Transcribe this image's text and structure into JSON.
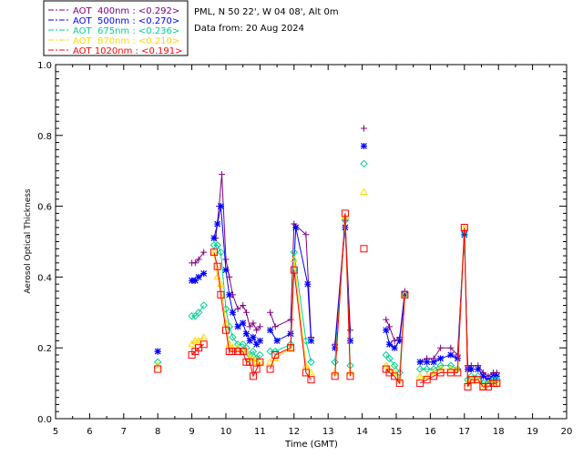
{
  "chart_data": {
    "type": "line",
    "info": {
      "location": "PML, N 50 22', W 04 08', Alt 0m",
      "date": "Data from: 20 Aug 2024"
    },
    "xlabel": "Time (GMT)",
    "ylabel": "Aerosol Optical Thickness",
    "xlim": [
      5,
      20
    ],
    "ylim": [
      0,
      1.0
    ],
    "x_ticks": [
      5,
      6,
      7,
      8,
      9,
      10,
      11,
      12,
      13,
      14,
      15,
      16,
      17,
      18,
      19,
      20
    ],
    "y_ticks": [
      "0.0",
      "0.2",
      "0.4",
      "0.6",
      "0.8",
      "1.0"
    ],
    "legend_position": "top-left",
    "grid": false,
    "series": [
      {
        "name": "AOT  400nm : <0.292>",
        "color": "#800080",
        "marker": "plus",
        "segments": [
          [
            [
              8.0,
              0.19
            ]
          ],
          [
            [
              9.0,
              0.44
            ],
            [
              9.1,
              0.44
            ],
            [
              9.2,
              0.45
            ],
            [
              9.35,
              0.47
            ]
          ],
          [
            [
              9.7,
              0.51
            ],
            [
              9.8,
              0.6
            ],
            [
              9.88,
              0.69
            ],
            [
              10.0,
              0.45
            ],
            [
              10.1,
              0.4
            ],
            [
              10.2,
              0.35
            ],
            [
              10.35,
              0.31
            ],
            [
              10.5,
              0.32
            ],
            [
              10.6,
              0.3
            ],
            [
              10.7,
              0.26
            ],
            [
              10.8,
              0.27
            ],
            [
              10.9,
              0.25
            ],
            [
              11.0,
              0.26
            ]
          ],
          [
            [
              11.3,
              0.3
            ],
            [
              11.45,
              0.26
            ],
            [
              11.9,
              0.28
            ],
            [
              12.0,
              0.55
            ],
            [
              12.35,
              0.52
            ],
            [
              12.5,
              0.23
            ]
          ],
          [
            [
              13.2,
              0.21
            ],
            [
              13.5,
              0.56
            ],
            [
              13.65,
              0.25
            ]
          ],
          [
            [
              14.05,
              0.82
            ]
          ],
          [
            [
              14.7,
              0.28
            ],
            [
              14.8,
              0.26
            ],
            [
              14.95,
              0.22
            ],
            [
              15.1,
              0.23
            ],
            [
              15.25,
              0.36
            ]
          ],
          [
            [
              15.7,
              0.16
            ],
            [
              15.9,
              0.17
            ],
            [
              16.1,
              0.17
            ],
            [
              16.3,
              0.2
            ],
            [
              16.6,
              0.2
            ],
            [
              16.8,
              0.18
            ],
            [
              17.0,
              0.53
            ],
            [
              17.1,
              0.15
            ],
            [
              17.2,
              0.15
            ],
            [
              17.4,
              0.15
            ],
            [
              17.55,
              0.13
            ],
            [
              17.7,
              0.12
            ],
            [
              17.85,
              0.13
            ],
            [
              17.95,
              0.13
            ]
          ]
        ]
      },
      {
        "name": "AOT  500nm : <0.270>",
        "color": "#0000ff",
        "marker": "asterisk",
        "segments": [
          [
            [
              8.0,
              0.19
            ]
          ],
          [
            [
              9.0,
              0.39
            ],
            [
              9.1,
              0.39
            ],
            [
              9.2,
              0.4
            ],
            [
              9.35,
              0.41
            ]
          ],
          [
            [
              9.65,
              0.51
            ],
            [
              9.75,
              0.55
            ],
            [
              9.85,
              0.6
            ],
            [
              10.0,
              0.42
            ],
            [
              10.1,
              0.35
            ],
            [
              10.2,
              0.3
            ],
            [
              10.35,
              0.26
            ],
            [
              10.5,
              0.27
            ],
            [
              10.6,
              0.24
            ],
            [
              10.7,
              0.22
            ],
            [
              10.8,
              0.23
            ],
            [
              10.9,
              0.21
            ],
            [
              11.0,
              0.22
            ]
          ],
          [
            [
              11.3,
              0.25
            ],
            [
              11.5,
              0.22
            ],
            [
              11.9,
              0.24
            ],
            [
              12.05,
              0.54
            ],
            [
              12.4,
              0.38
            ],
            [
              12.5,
              0.22
            ]
          ],
          [
            [
              13.2,
              0.2
            ],
            [
              13.5,
              0.54
            ],
            [
              13.65,
              0.22
            ]
          ],
          [
            [
              14.05,
              0.77
            ]
          ],
          [
            [
              14.7,
              0.25
            ],
            [
              14.8,
              0.21
            ],
            [
              14.95,
              0.2
            ],
            [
              15.1,
              0.22
            ],
            [
              15.25,
              0.35
            ]
          ],
          [
            [
              15.7,
              0.16
            ],
            [
              15.9,
              0.16
            ],
            [
              16.1,
              0.16
            ],
            [
              16.3,
              0.17
            ],
            [
              16.6,
              0.18
            ],
            [
              16.8,
              0.17
            ],
            [
              17.0,
              0.52
            ],
            [
              17.1,
              0.14
            ],
            [
              17.2,
              0.14
            ],
            [
              17.4,
              0.14
            ],
            [
              17.55,
              0.12
            ],
            [
              17.7,
              0.11
            ],
            [
              17.85,
              0.12
            ],
            [
              17.95,
              0.12
            ]
          ]
        ]
      },
      {
        "name": "AOT  675nm : <0.236>",
        "color": "#00d090",
        "marker": "diamond",
        "segments": [
          [
            [
              8.0,
              0.16
            ]
          ],
          [
            [
              9.0,
              0.29
            ],
            [
              9.1,
              0.29
            ],
            [
              9.2,
              0.3
            ],
            [
              9.35,
              0.32
            ]
          ],
          [
            [
              9.65,
              0.49
            ],
            [
              9.75,
              0.49
            ],
            [
              9.85,
              0.47
            ],
            [
              10.0,
              0.31
            ],
            [
              10.1,
              0.26
            ],
            [
              10.2,
              0.23
            ],
            [
              10.35,
              0.21
            ],
            [
              10.5,
              0.21
            ],
            [
              10.6,
              0.2
            ],
            [
              10.7,
              0.18
            ],
            [
              10.8,
              0.19
            ],
            [
              10.9,
              0.17
            ],
            [
              11.0,
              0.18
            ]
          ],
          [
            [
              11.3,
              0.19
            ],
            [
              11.45,
              0.19
            ],
            [
              11.9,
              0.21
            ],
            [
              12.0,
              0.47
            ],
            [
              12.35,
              0.22
            ],
            [
              12.5,
              0.16
            ]
          ],
          [
            [
              13.2,
              0.16
            ],
            [
              13.5,
              0.56
            ],
            [
              13.65,
              0.15
            ]
          ],
          [
            [
              14.05,
              0.72
            ]
          ],
          [
            [
              14.7,
              0.18
            ],
            [
              14.8,
              0.17
            ],
            [
              14.95,
              0.15
            ],
            [
              15.1,
              0.13
            ],
            [
              15.25,
              0.35
            ]
          ],
          [
            [
              15.7,
              0.14
            ],
            [
              15.9,
              0.14
            ],
            [
              16.1,
              0.14
            ],
            [
              16.3,
              0.15
            ],
            [
              16.6,
              0.15
            ],
            [
              16.8,
              0.14
            ],
            [
              17.0,
              0.52
            ],
            [
              17.1,
              0.11
            ],
            [
              17.2,
              0.12
            ],
            [
              17.4,
              0.12
            ],
            [
              17.55,
              0.1
            ],
            [
              17.7,
              0.1
            ],
            [
              17.85,
              0.11
            ],
            [
              17.95,
              0.11
            ]
          ]
        ]
      },
      {
        "name": "AOT  870nm : <0.210>",
        "color": "#ffd700",
        "marker": "triangle",
        "segments": [
          [
            [
              8.0,
              0.15
            ]
          ],
          [
            [
              9.0,
              0.21
            ],
            [
              9.1,
              0.22
            ],
            [
              9.2,
              0.22
            ],
            [
              9.35,
              0.23
            ]
          ],
          [
            [
              9.65,
              0.47
            ],
            [
              9.75,
              0.4
            ],
            [
              9.85,
              0.38
            ],
            [
              10.0,
              0.27
            ],
            [
              10.1,
              0.21
            ],
            [
              10.2,
              0.2
            ],
            [
              10.35,
              0.2
            ],
            [
              10.5,
              0.19
            ],
            [
              10.6,
              0.19
            ],
            [
              10.7,
              0.17
            ],
            [
              10.8,
              0.17
            ],
            [
              10.9,
              0.16
            ],
            [
              11.0,
              0.16
            ]
          ],
          [
            [
              11.3,
              0.16
            ],
            [
              11.45,
              0.17
            ],
            [
              11.9,
              0.2
            ],
            [
              12.0,
              0.45
            ],
            [
              12.35,
              0.15
            ],
            [
              12.5,
              0.13
            ]
          ],
          [
            [
              13.2,
              0.13
            ],
            [
              13.5,
              0.57
            ],
            [
              13.65,
              0.13
            ]
          ],
          [
            [
              14.05,
              0.64
            ]
          ],
          [
            [
              14.7,
              0.15
            ],
            [
              14.8,
              0.14
            ],
            [
              14.95,
              0.13
            ],
            [
              15.1,
              0.11
            ],
            [
              15.25,
              0.35
            ]
          ],
          [
            [
              15.7,
              0.12
            ],
            [
              15.9,
              0.12
            ],
            [
              16.1,
              0.13
            ],
            [
              16.3,
              0.14
            ],
            [
              16.6,
              0.14
            ],
            [
              16.8,
              0.14
            ],
            [
              17.0,
              0.54
            ],
            [
              17.1,
              0.1
            ],
            [
              17.2,
              0.11
            ],
            [
              17.4,
              0.11
            ],
            [
              17.55,
              0.09
            ],
            [
              17.7,
              0.1
            ],
            [
              17.85,
              0.1
            ],
            [
              17.95,
              0.1
            ]
          ]
        ]
      },
      {
        "name": "AOT 1020nm : <0.191>",
        "color": "#ff0000",
        "marker": "square",
        "segments": [
          [
            [
              8.0,
              0.14
            ]
          ],
          [
            [
              9.0,
              0.18
            ],
            [
              9.1,
              0.19
            ],
            [
              9.2,
              0.2
            ],
            [
              9.35,
              0.21
            ]
          ],
          [
            [
              9.65,
              0.47
            ],
            [
              9.75,
              0.43
            ],
            [
              9.85,
              0.35
            ],
            [
              10.0,
              0.25
            ],
            [
              10.1,
              0.19
            ],
            [
              10.2,
              0.19
            ],
            [
              10.35,
              0.19
            ],
            [
              10.5,
              0.19
            ],
            [
              10.6,
              0.16
            ],
            [
              10.7,
              0.16
            ],
            [
              10.8,
              0.12
            ],
            [
              10.9,
              0.14
            ],
            [
              11.0,
              0.16
            ]
          ],
          [
            [
              11.3,
              0.14
            ],
            [
              11.45,
              0.18
            ],
            [
              11.9,
              0.2
            ],
            [
              12.0,
              0.42
            ],
            [
              12.35,
              0.13
            ],
            [
              12.5,
              0.11
            ]
          ],
          [
            [
              13.2,
              0.12
            ],
            [
              13.5,
              0.58
            ],
            [
              13.65,
              0.12
            ]
          ],
          [
            [
              14.05,
              0.48
            ]
          ],
          [
            [
              14.7,
              0.14
            ],
            [
              14.8,
              0.13
            ],
            [
              14.95,
              0.12
            ],
            [
              15.1,
              0.1
            ],
            [
              15.25,
              0.35
            ]
          ],
          [
            [
              15.7,
              0.1
            ],
            [
              15.9,
              0.11
            ],
            [
              16.1,
              0.12
            ],
            [
              16.3,
              0.13
            ],
            [
              16.6,
              0.13
            ],
            [
              16.8,
              0.13
            ],
            [
              17.0,
              0.54
            ],
            [
              17.1,
              0.09
            ],
            [
              17.2,
              0.11
            ],
            [
              17.4,
              0.11
            ],
            [
              17.55,
              0.09
            ],
            [
              17.7,
              0.09
            ],
            [
              17.85,
              0.1
            ],
            [
              17.95,
              0.1
            ]
          ]
        ]
      }
    ]
  }
}
